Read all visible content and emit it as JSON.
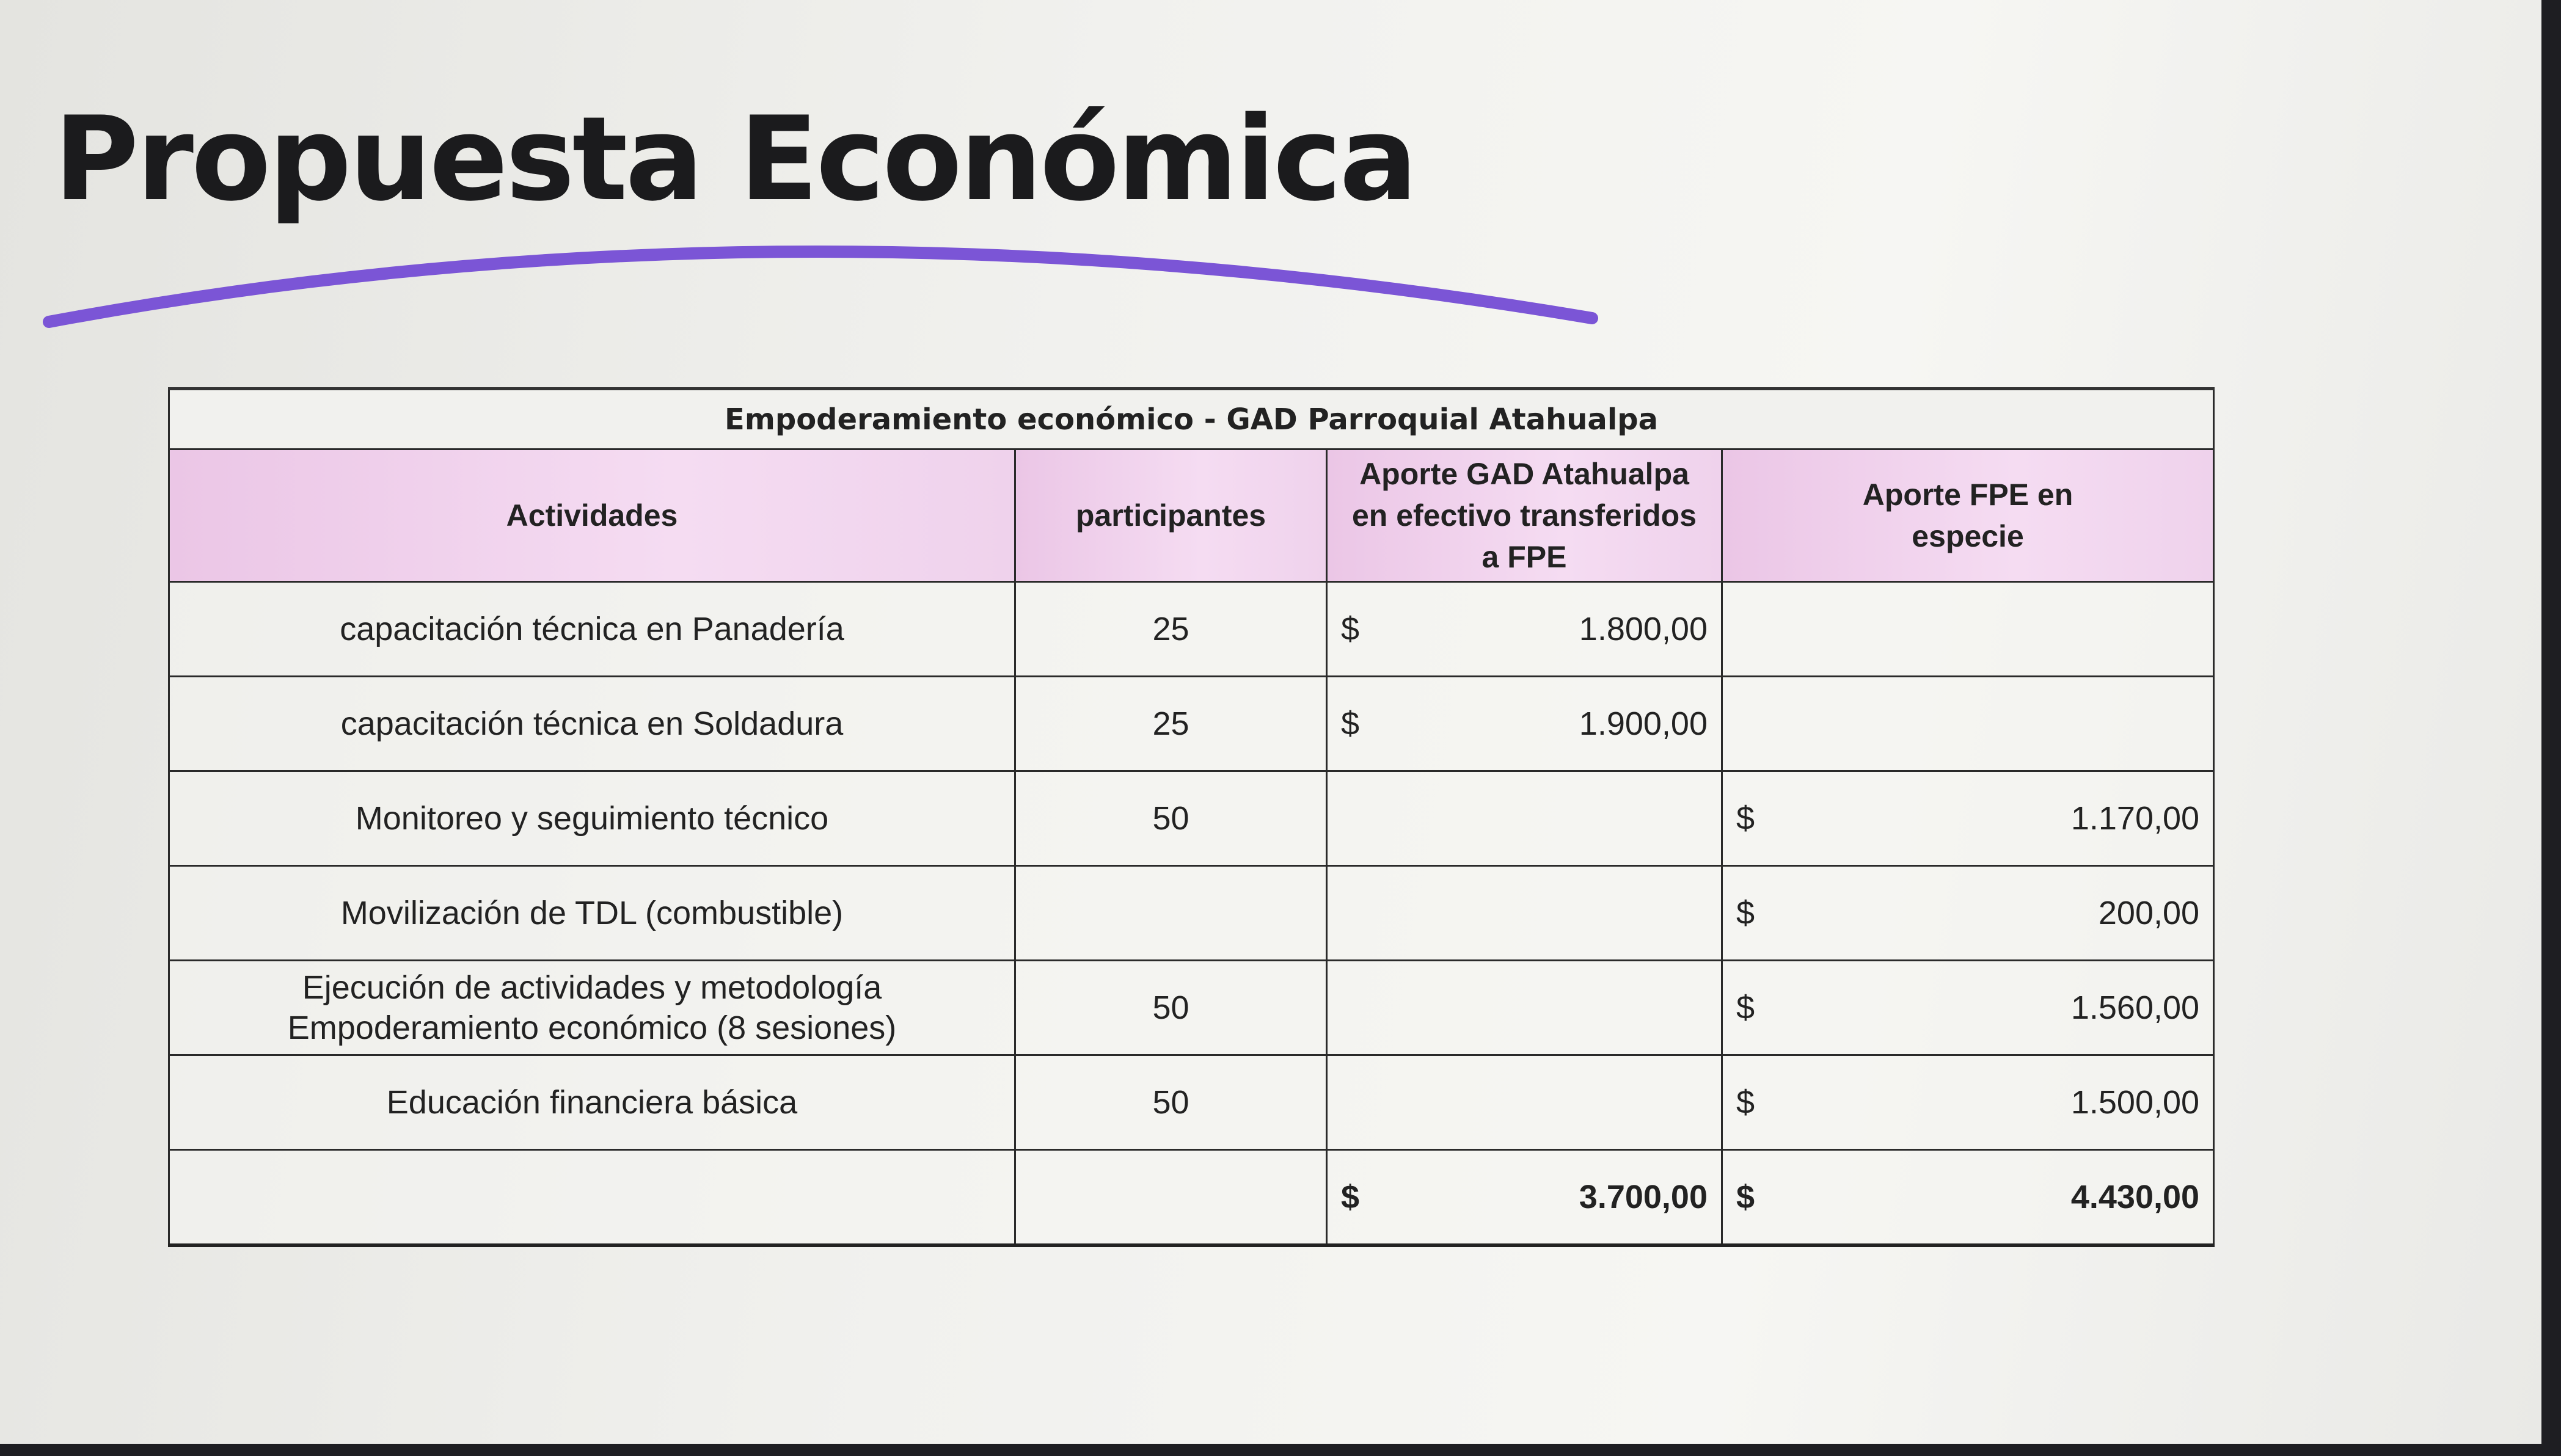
{
  "slide": {
    "title": "Propuesta Económica",
    "accent_color": "#7b55d6"
  },
  "table": {
    "caption": "Empoderamiento económico - GAD Parroquial Atahualpa",
    "header_bg": "#f0d0ec",
    "columns": [
      "Actividades",
      "participantes",
      "Aporte GAD Atahualpa en efectivo transferidos a FPE",
      "Aporte FPE en especie"
    ],
    "rows": [
      {
        "actividad": "capacitación técnica en Panadería",
        "participantes": "25",
        "gad_currency": "$",
        "gad": "1.800,00",
        "fpe_currency": "",
        "fpe": ""
      },
      {
        "actividad": "capacitación técnica en Soldadura",
        "participantes": "25",
        "gad_currency": "$",
        "gad": "1.900,00",
        "fpe_currency": "",
        "fpe": ""
      },
      {
        "actividad": "Monitoreo y seguimiento técnico",
        "participantes": "50",
        "gad_currency": "",
        "gad": "",
        "fpe_currency": "$",
        "fpe": "1.170,00"
      },
      {
        "actividad": "Movilización de TDL (combustible)",
        "participantes": "",
        "gad_currency": "",
        "gad": "",
        "fpe_currency": "$",
        "fpe": "200,00"
      },
      {
        "actividad": "Ejecución de actividades y metodología Empoderamiento económico (8 sesiones)",
        "participantes": "50",
        "gad_currency": "",
        "gad": "",
        "fpe_currency": "$",
        "fpe": "1.560,00"
      },
      {
        "actividad": "Educación financiera básica",
        "participantes": "50",
        "gad_currency": "",
        "gad": "",
        "fpe_currency": "$",
        "fpe": "1.500,00"
      }
    ],
    "totals": {
      "gad_currency": "$",
      "gad": "3.700,00",
      "fpe_currency": "$",
      "fpe": "4.430,00"
    }
  }
}
